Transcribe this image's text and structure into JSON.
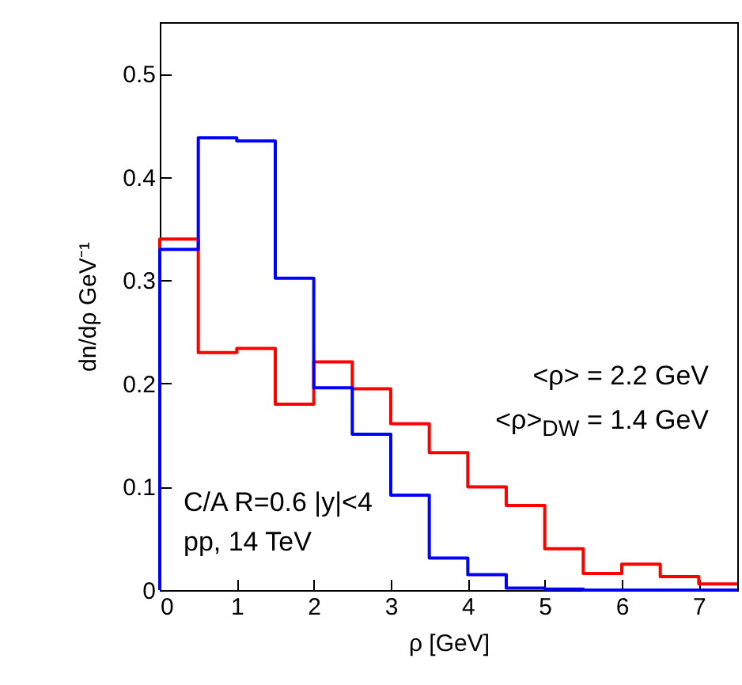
{
  "chart_data": {
    "type": "histogram",
    "xlabel": "ρ [GeV]",
    "ylabel": "dn/dρ GeV⁻¹",
    "bins": [
      0,
      0.5,
      1,
      1.5,
      2,
      2.5,
      3,
      3.5,
      4,
      4.5,
      5,
      5.5,
      6,
      6.5,
      7,
      7.5
    ],
    "series": [
      {
        "color": "#ff0000",
        "values": [
          0.34,
          0.23,
          0.234,
          0.18,
          0.221,
          0.195,
          0.161,
          0.133,
          0.1,
          0.082,
          0.04,
          0.016,
          0.025,
          0.013,
          0.006
        ]
      },
      {
        "color": "#0000ff",
        "values": [
          0.33,
          0.438,
          0.435,
          0.302,
          0.196,
          0.151,
          0.092,
          0.031,
          0.015,
          0.002,
          0.001,
          0,
          0,
          0,
          0
        ]
      }
    ],
    "xlim": [
      0,
      7.5
    ],
    "xticks": [
      0,
      1,
      2,
      3,
      4,
      5,
      6,
      7
    ],
    "ylim": [
      0,
      0.55
    ],
    "yticks": [
      0,
      0.1,
      0.2,
      0.3,
      0.4,
      0.5
    ],
    "annotations": [
      "<ρ> = 2.2 GeV",
      "<ρ>$_{DW}$ = 1.4 GeV",
      "C/A R=0.6 |y|<4",
      "pp, 14 TeV"
    ],
    "grid": false
  }
}
